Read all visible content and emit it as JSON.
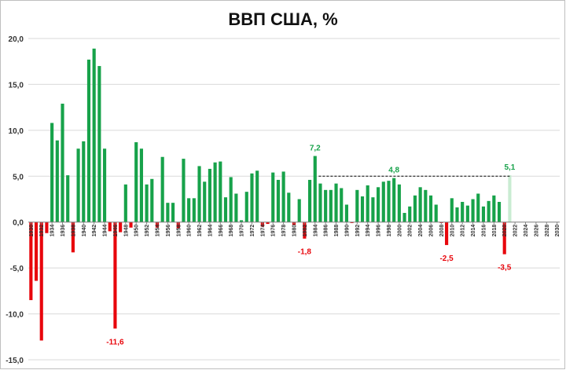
{
  "chart_data": {
    "type": "bar",
    "title": "ВВП США, %",
    "xlabel": "",
    "ylabel": "",
    "ylim": [
      -15,
      20
    ],
    "yticks": [
      -15,
      -10,
      -5,
      0,
      5,
      10,
      15,
      20
    ],
    "ytick_labels": [
      "-15,0",
      "-10,0",
      "-5,0",
      "0,0",
      "5,0",
      "10,0",
      "15,0",
      "20,0"
    ],
    "grid": true,
    "x_range": [
      1930,
      2030
    ],
    "xtick_years": [
      1930,
      1932,
      1934,
      1936,
      1938,
      1940,
      1942,
      1944,
      1946,
      1948,
      1950,
      1952,
      1954,
      1956,
      1958,
      1960,
      1962,
      1964,
      1966,
      1968,
      1970,
      1972,
      1974,
      1976,
      1978,
      1980,
      1982,
      1984,
      1986,
      1988,
      1990,
      1992,
      1994,
      1996,
      1998,
      2000,
      2002,
      2004,
      2006,
      2008,
      2010,
      2012,
      2014,
      2016,
      2018,
      2020,
      2022,
      2024,
      2026,
      2028,
      2030
    ],
    "years": [
      1930,
      1931,
      1932,
      1933,
      1934,
      1935,
      1936,
      1937,
      1938,
      1939,
      1940,
      1941,
      1942,
      1943,
      1944,
      1945,
      1946,
      1947,
      1948,
      1949,
      1950,
      1951,
      1952,
      1953,
      1954,
      1955,
      1956,
      1957,
      1958,
      1959,
      1960,
      1961,
      1962,
      1963,
      1964,
      1965,
      1966,
      1967,
      1968,
      1969,
      1970,
      1971,
      1972,
      1973,
      1974,
      1975,
      1976,
      1977,
      1978,
      1979,
      1980,
      1981,
      1982,
      1983,
      1984,
      1985,
      1986,
      1987,
      1988,
      1989,
      1990,
      1991,
      1992,
      1993,
      1994,
      1995,
      1996,
      1997,
      1998,
      1999,
      2000,
      2001,
      2002,
      2003,
      2004,
      2005,
      2006,
      2007,
      2008,
      2009,
      2010,
      2011,
      2012,
      2013,
      2014,
      2015,
      2016,
      2017,
      2018,
      2019,
      2020,
      2021
    ],
    "values": [
      -8.5,
      -6.4,
      -12.9,
      -1.2,
      10.8,
      8.9,
      12.9,
      5.1,
      -3.3,
      8.0,
      8.8,
      17.7,
      18.9,
      17.0,
      8.0,
      -1.0,
      -11.6,
      -1.1,
      4.1,
      -0.6,
      8.7,
      8.0,
      4.1,
      4.7,
      -0.6,
      7.1,
      2.1,
      2.1,
      -0.7,
      6.9,
      2.6,
      2.6,
      6.1,
      4.4,
      5.8,
      6.5,
      6.6,
      2.7,
      4.9,
      3.1,
      0.2,
      3.3,
      5.3,
      5.6,
      -0.5,
      -0.2,
      5.4,
      4.6,
      5.5,
      3.2,
      -0.3,
      2.5,
      -1.8,
      4.6,
      7.2,
      4.2,
      3.5,
      3.5,
      4.2,
      3.7,
      1.9,
      -0.1,
      3.5,
      2.8,
      4.0,
      2.7,
      3.8,
      4.4,
      4.5,
      4.8,
      4.1,
      1.0,
      1.7,
      2.9,
      3.8,
      3.5,
      2.9,
      1.9,
      -0.1,
      -2.5,
      2.6,
      1.6,
      2.2,
      1.8,
      2.5,
      3.1,
      1.7,
      2.3,
      2.9,
      2.2,
      -3.5,
      5.1
    ],
    "colors": {
      "positive": "#17a24a",
      "negative": "#e8060c",
      "forecast": "#c9ecd2",
      "axis": "#7f7f7f",
      "grid": "#d9d9d9",
      "tick_text": "#333333",
      "dashed_line": "#000000"
    },
    "forecast_years": [
      2021
    ],
    "dashed_reference_line": {
      "value": 5.0,
      "from_year": 1985,
      "to_year": 2021
    },
    "annotations": [
      {
        "year": 1946,
        "value": -11.6,
        "label": "-11,6",
        "color": "#e8060c"
      },
      {
        "year": 1982,
        "value": -1.8,
        "label": "-1,8",
        "color": "#e8060c"
      },
      {
        "year": 1984,
        "value": 7.2,
        "label": "7,2",
        "color": "#17a24a"
      },
      {
        "year": 1999,
        "value": 4.8,
        "label": "4,8",
        "color": "#17a24a"
      },
      {
        "year": 2009,
        "value": -2.5,
        "label": "-2,5",
        "color": "#e8060c"
      },
      {
        "year": 2020,
        "value": -3.5,
        "label": "-3,5",
        "color": "#e8060c"
      },
      {
        "year": 2021,
        "value": 5.1,
        "label": "5,1",
        "color": "#17a24a"
      }
    ]
  }
}
